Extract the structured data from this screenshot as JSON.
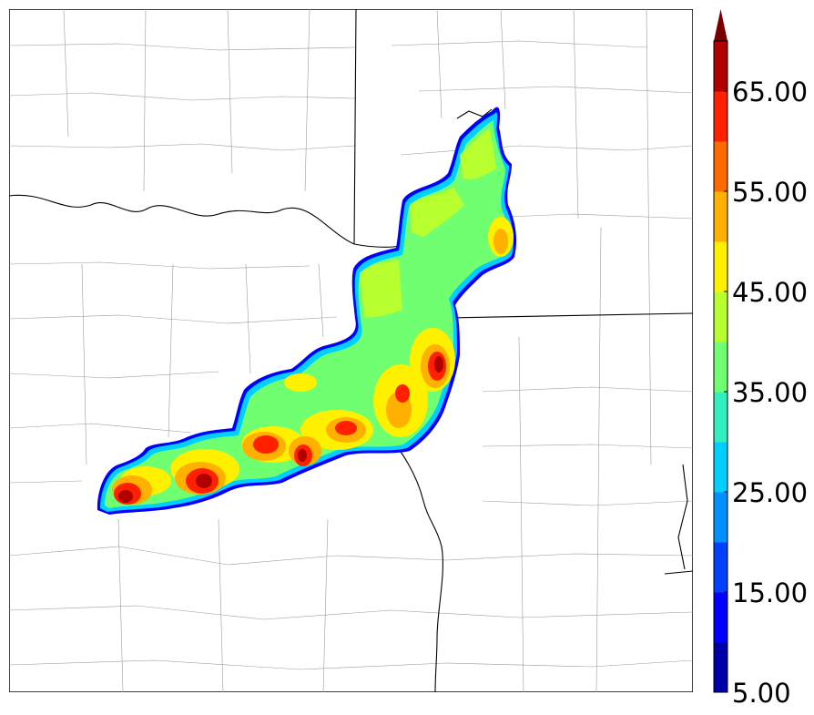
{
  "figure": {
    "type": "filled-contour-map",
    "description_kind": "reflectivity-style shaded field over county/state boundaries"
  },
  "colorbar": {
    "tick_labels": [
      "5.00",
      "15.00",
      "25.00",
      "35.00",
      "45.00",
      "55.00",
      "65.00"
    ],
    "levels": [
      5,
      10,
      15,
      20,
      25,
      30,
      35,
      40,
      45,
      50,
      55,
      60,
      65,
      70
    ],
    "extend": "max",
    "colors": [
      "#0000aa",
      "#0000ff",
      "#0040ff",
      "#0090ff",
      "#00d0ff",
      "#30f0c0",
      "#70ff70",
      "#b8ff30",
      "#fff000",
      "#ffb000",
      "#ff6a00",
      "#ff2000",
      "#b00000"
    ],
    "extend_color": "#7a0000"
  }
}
